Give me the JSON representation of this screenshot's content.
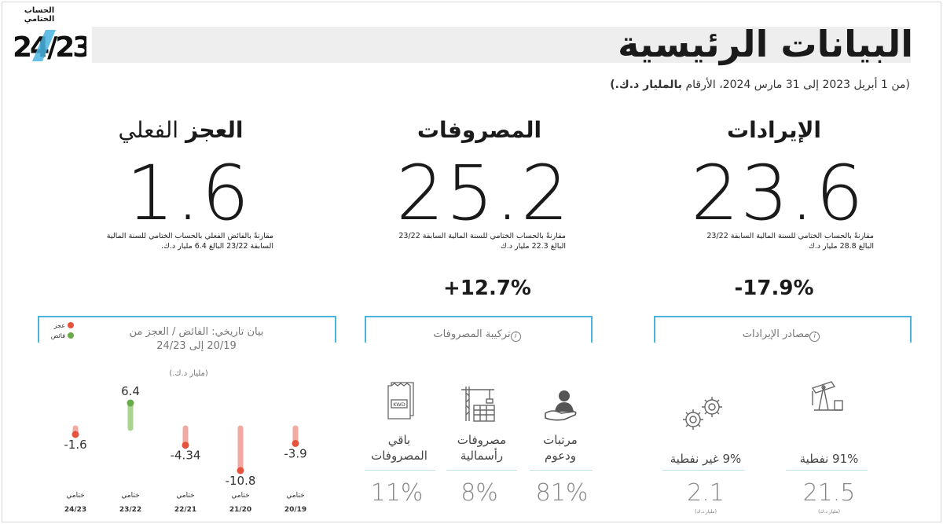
{
  "header": {
    "top_label": "الحساب الختامي",
    "logo_text": "24/23",
    "title": "البيانات الرئيسية",
    "subtitle_normal": "(من 1 أبريل 2023 إلى 31 مارس 2024، الأرقام ",
    "subtitle_bold": "بالمليار د.ك.)"
  },
  "revenue": {
    "title": "الإيرادات",
    "value": "23.6",
    "note_line1": "مقارنةً بالحساب الختامي للسنة المالية السابقة 23/22",
    "note_line2": "البالغ 28.8 مليار د.ك",
    "change": "-17.9%",
    "box_label": "مصادر الإيرادات",
    "items": [
      {
        "label": "91% نفطية",
        "value": "21.5",
        "unit": "(مليار د.ك)",
        "icon": "oil-pump-icon"
      },
      {
        "label": "9% غير نفطية",
        "value": "2.1",
        "unit": "(مليار د.ك)",
        "icon": "gears-icon"
      }
    ]
  },
  "expenses": {
    "title": "المصروفات",
    "value": "25.2",
    "note_line1": "مقارنةً بالحساب الختامي للسنة المالية السابقة 23/22",
    "note_line2": "البالغ 22.3 مليار د.ك",
    "change": "+12.7%",
    "box_label": "تركيبة المصروفات",
    "items": [
      {
        "label_line1": "مرتبات",
        "label_line2": "ودعوم",
        "value": "81%",
        "icon": "hand-person-icon"
      },
      {
        "label_line1": "مصروفات",
        "label_line2": "رأسمالية",
        "value": "8%",
        "icon": "crane-building-icon"
      },
      {
        "label_line1": "باقي",
        "label_line2": "المصروفات",
        "value": "11%",
        "icon": "kwd-receipt-icon"
      }
    ]
  },
  "deficit": {
    "title_bold": "العجز",
    "title_normal": "الفعلي",
    "value": "1.6",
    "note_line1": "مقارنةً بالفائض الفعلي بالحساب الختامي للسنة المالية",
    "note_line2": "السابقة 23/22 البالغ 6.4 مليار د.ك."
  },
  "history": {
    "title_line1": "بيان تاريخي: الفائض / العجز من",
    "title_line2": "20/19 إلى 24/23",
    "unit": "(مليار د.ك.)",
    "legend_deficit": "عجز",
    "legend_surplus": "فائض",
    "colors": {
      "deficit": "#e5533d",
      "deficit_bar": "#f2aaa0",
      "surplus": "#6aab4a",
      "surplus_bar": "#a9d38f"
    }
  },
  "chart_data": {
    "type": "bar",
    "categories": [
      "24/23",
      "23/22",
      "22/21",
      "21/20",
      "20/19"
    ],
    "category_prefix": "ختامي",
    "values": [
      -1.6,
      6.4,
      -4.34,
      -10.8,
      -3.9
    ],
    "value_labels": [
      "-1.6",
      "6.4",
      "-4.34",
      "-10.8",
      "-3.9"
    ],
    "title": "بيان تاريخي: الفائض / العجز من 20/19 إلى 24/23",
    "ylabel": "(مليار د.ك.)"
  }
}
